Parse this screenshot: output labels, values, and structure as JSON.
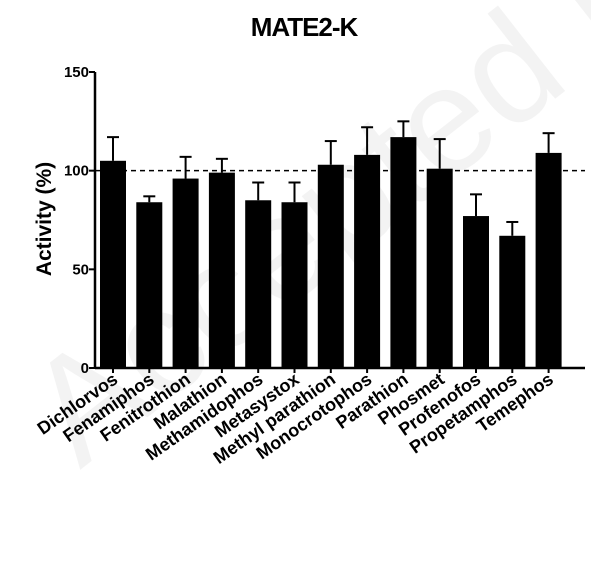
{
  "chart_data": {
    "type": "bar",
    "title": "MATE2-K",
    "xlabel": "",
    "ylabel": "Activity  (%)",
    "ylim": [
      0,
      150
    ],
    "yticks": [
      0,
      50,
      100,
      150
    ],
    "reference_line": 100,
    "categories": [
      "Dichlorvos",
      "Fenamiphos",
      "Fenitrothion",
      "Malathion",
      "Methamidophos",
      "Metasystox",
      "Methyl parathion",
      "Monocrotophos",
      "Parathion",
      "Phosmet",
      "Profenofos",
      "Propetamphos",
      "Temephos"
    ],
    "values": [
      105,
      84,
      96,
      99,
      85,
      84,
      103,
      108,
      117,
      101,
      77,
      67,
      109
    ],
    "errors": [
      12,
      3,
      11,
      7,
      9,
      10,
      12,
      14,
      8,
      15,
      11,
      7,
      10
    ],
    "colors": {
      "bar": "#000000",
      "reference_line": "#000000"
    }
  },
  "watermark": "Accepted Manuscript"
}
